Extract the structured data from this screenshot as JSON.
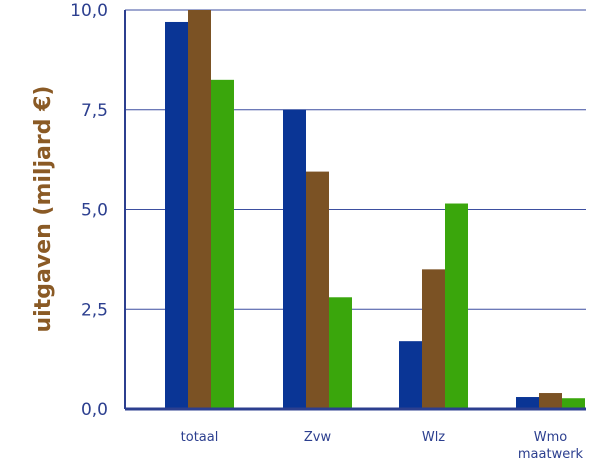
{
  "chart_data": {
    "type": "bar",
    "ylabel": "uitgaven (miljard €)",
    "ylim": [
      0,
      10
    ],
    "yticks": [
      "0,0",
      "2,5",
      "5,0",
      "7,5",
      "10,0"
    ],
    "tick_values": [
      0,
      2.5,
      5,
      7.5,
      10
    ],
    "grid": true,
    "categories": [
      {
        "label": "totaal"
      },
      {
        "label": "Zvw"
      },
      {
        "label": "Wlz"
      },
      {
        "label": "Wmo",
        "label2": "maatwerk"
      }
    ],
    "series": [
      {
        "values": [
          9.7,
          7.5,
          1.7,
          0.3
        ],
        "color": "#0a3595"
      },
      {
        "values": [
          10.0,
          5.95,
          3.5,
          0.4
        ],
        "color": "#7b5224"
      },
      {
        "values": [
          8.25,
          2.8,
          5.15,
          0.27
        ],
        "color": "#3aa60c"
      }
    ],
    "colors": {
      "axis": "#2c3f8f",
      "grid": "#3d4fa0",
      "label": "#2c3f8f",
      "ytitle": "#8a5a25"
    }
  }
}
